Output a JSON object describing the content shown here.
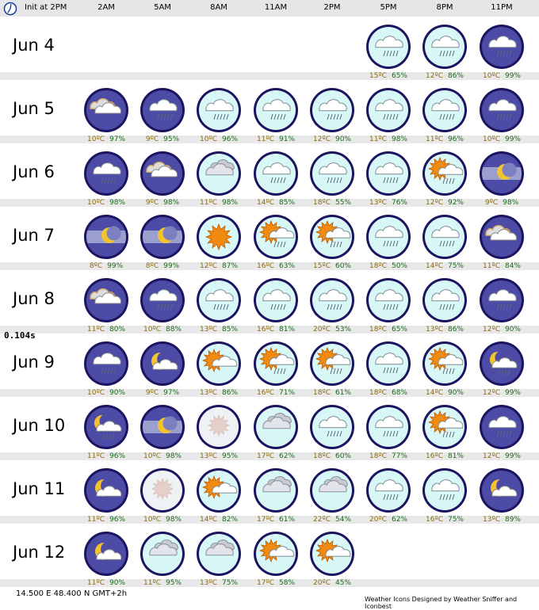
{
  "header": {
    "init": "Init at 2PM",
    "times": [
      "2AM",
      "5AM",
      "8AM",
      "11AM",
      "2PM",
      "5PM",
      "8PM",
      "11PM"
    ]
  },
  "timing": "0.104s",
  "footer": {
    "coords": "14.500  E 48.400  N GMT+2h",
    "credit": "Weather Icons Designed by Weather Sniffer and Iconbest"
  },
  "days": [
    {
      "label": "Jun 4",
      "cells": [
        null,
        null,
        null,
        null,
        null,
        {
          "icon": "cloud-rain-day",
          "temp": "15ºC",
          "hum": "65%"
        },
        {
          "icon": "cloud-rain-day",
          "temp": "12ºC",
          "hum": "86%"
        },
        {
          "icon": "cloud-rain-night",
          "temp": "10ºC",
          "hum": "99%"
        }
      ]
    },
    {
      "label": "Jun 5",
      "cells": [
        {
          "icon": "partly-cloudy-night",
          "temp": "10ºC",
          "hum": "97%"
        },
        {
          "icon": "cloud-rain-night",
          "temp": "9ºC",
          "hum": "95%"
        },
        {
          "icon": "cloud-rain-day",
          "temp": "10ºC",
          "hum": "96%"
        },
        {
          "icon": "cloud-rain-day",
          "temp": "11ºC",
          "hum": "91%"
        },
        {
          "icon": "cloud-rain-day",
          "temp": "12ºC",
          "hum": "90%"
        },
        {
          "icon": "cloud-rain-day",
          "temp": "11ºC",
          "hum": "98%"
        },
        {
          "icon": "cloud-rain-day",
          "temp": "11ºC",
          "hum": "96%"
        },
        {
          "icon": "cloud-rain-night",
          "temp": "10ºC",
          "hum": "99%"
        }
      ]
    },
    {
      "label": "Jun 6",
      "cells": [
        {
          "icon": "cloud-rain-night",
          "temp": "10ºC",
          "hum": "98%"
        },
        {
          "icon": "partly-cloudy-night",
          "temp": "9ºC",
          "hum": "98%"
        },
        {
          "icon": "overcast-day",
          "temp": "11ºC",
          "hum": "98%"
        },
        {
          "icon": "cloud-rain-day",
          "temp": "14ºC",
          "hum": "85%"
        },
        {
          "icon": "cloud-rain-day",
          "temp": "18ºC",
          "hum": "55%"
        },
        {
          "icon": "cloud-rain-day",
          "temp": "13ºC",
          "hum": "76%"
        },
        {
          "icon": "sun-cloud-rain",
          "temp": "12ºC",
          "hum": "92%"
        },
        {
          "icon": "fog-night",
          "temp": "9ºC",
          "hum": "98%"
        }
      ]
    },
    {
      "label": "Jun 7",
      "cells": [
        {
          "icon": "fog-night",
          "temp": "8ºC",
          "hum": "99%"
        },
        {
          "icon": "fog-night",
          "temp": "8ºC",
          "hum": "99%"
        },
        {
          "icon": "sunny",
          "temp": "12ºC",
          "hum": "87%"
        },
        {
          "icon": "sun-cloud-rain",
          "temp": "16ºC",
          "hum": "63%"
        },
        {
          "icon": "sun-cloud-rain",
          "temp": "15ºC",
          "hum": "60%"
        },
        {
          "icon": "cloud-rain-day",
          "temp": "18ºC",
          "hum": "50%"
        },
        {
          "icon": "cloud-rain-day",
          "temp": "14ºC",
          "hum": "75%"
        },
        {
          "icon": "partly-cloudy-night",
          "temp": "11ºC",
          "hum": "84%"
        }
      ]
    },
    {
      "label": "Jun 8",
      "cells": [
        {
          "icon": "partly-cloudy-night",
          "temp": "11ºC",
          "hum": "80%"
        },
        {
          "icon": "cloud-rain-night",
          "temp": "10ºC",
          "hum": "88%"
        },
        {
          "icon": "cloud-rain-day",
          "temp": "13ºC",
          "hum": "85%"
        },
        {
          "icon": "cloud-rain-day",
          "temp": "16ºC",
          "hum": "81%"
        },
        {
          "icon": "cloud-rain-day",
          "temp": "20ºC",
          "hum": "53%"
        },
        {
          "icon": "cloud-rain-day",
          "temp": "18ºC",
          "hum": "65%"
        },
        {
          "icon": "cloud-rain-day",
          "temp": "13ºC",
          "hum": "86%"
        },
        {
          "icon": "cloud-rain-night",
          "temp": "12ºC",
          "hum": "90%"
        }
      ]
    },
    {
      "label": "Jun 9",
      "cells": [
        {
          "icon": "cloud-rain-night",
          "temp": "10ºC",
          "hum": "90%"
        },
        {
          "icon": "moon-cloud",
          "temp": "9ºC",
          "hum": "97%"
        },
        {
          "icon": "sun-cloud",
          "temp": "13ºC",
          "hum": "86%"
        },
        {
          "icon": "sun-cloud-rain",
          "temp": "16ºC",
          "hum": "71%"
        },
        {
          "icon": "sun-cloud-rain",
          "temp": "18ºC",
          "hum": "61%"
        },
        {
          "icon": "cloud-rain-day",
          "temp": "18ºC",
          "hum": "68%"
        },
        {
          "icon": "sun-cloud-rain",
          "temp": "14ºC",
          "hum": "90%"
        },
        {
          "icon": "moon-cloud-rain",
          "temp": "12ºC",
          "hum": "99%"
        }
      ]
    },
    {
      "label": "Jun 10",
      "cells": [
        {
          "icon": "moon-cloud-rain",
          "temp": "11ºC",
          "hum": "96%"
        },
        {
          "icon": "fog-night",
          "temp": "10ºC",
          "hum": "98%"
        },
        {
          "icon": "fog-day",
          "temp": "13ºC",
          "hum": "95%"
        },
        {
          "icon": "overcast-day",
          "temp": "17ºC",
          "hum": "62%"
        },
        {
          "icon": "cloud-rain-day",
          "temp": "18ºC",
          "hum": "60%"
        },
        {
          "icon": "cloud-rain-day",
          "temp": "18ºC",
          "hum": "77%"
        },
        {
          "icon": "sun-cloud-rain",
          "temp": "16ºC",
          "hum": "81%"
        },
        {
          "icon": "cloud-rain-night",
          "temp": "12ºC",
          "hum": "99%"
        }
      ]
    },
    {
      "label": "Jun 11",
      "cells": [
        {
          "icon": "moon-cloud",
          "temp": "11ºC",
          "hum": "96%"
        },
        {
          "icon": "fog-day",
          "temp": "10ºC",
          "hum": "98%"
        },
        {
          "icon": "sun-cloud",
          "temp": "14ºC",
          "hum": "82%"
        },
        {
          "icon": "overcast-day",
          "temp": "17ºC",
          "hum": "61%"
        },
        {
          "icon": "overcast-day",
          "temp": "22ºC",
          "hum": "54%"
        },
        {
          "icon": "cloud-rain-day",
          "temp": "20ºC",
          "hum": "62%"
        },
        {
          "icon": "cloud-rain-day",
          "temp": "16ºC",
          "hum": "75%"
        },
        {
          "icon": "moon-cloud",
          "temp": "13ºC",
          "hum": "89%"
        }
      ]
    },
    {
      "label": "Jun 12",
      "cells": [
        {
          "icon": "moon-cloud",
          "temp": "11ºC",
          "hum": "90%"
        },
        {
          "icon": "overcast-day",
          "temp": "11ºC",
          "hum": "95%"
        },
        {
          "icon": "overcast-day",
          "temp": "13ºC",
          "hum": "75%"
        },
        {
          "icon": "sun-cloud",
          "temp": "17ºC",
          "hum": "58%"
        },
        {
          "icon": "sun-cloud",
          "temp": "20ºC",
          "hum": "45%"
        },
        null,
        null,
        null
      ]
    }
  ]
}
